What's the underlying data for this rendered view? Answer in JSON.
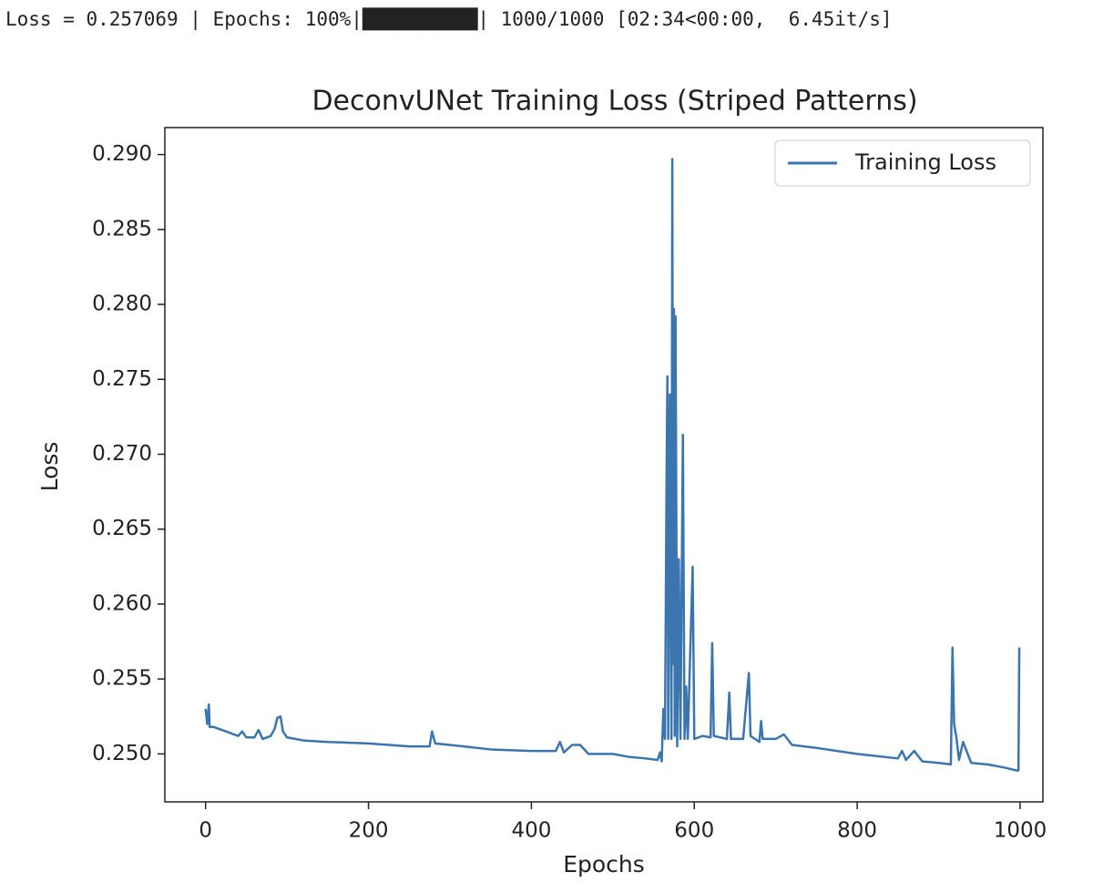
{
  "progress_text": "Loss = 0.257069 | Epochs: 100%|██████████| 1000/1000 [02:34<00:00,  6.45it/s]",
  "chart_data": {
    "type": "line",
    "title": "DeconvUNet Training Loss (Striped Patterns)",
    "x_label": "Epochs",
    "y_label": "Loss",
    "x": [
      0,
      2,
      4,
      5,
      10,
      20,
      30,
      40,
      45,
      50,
      60,
      65,
      70,
      80,
      85,
      88,
      92,
      95,
      100,
      120,
      150,
      200,
      250,
      275,
      278,
      282,
      300,
      350,
      400,
      430,
      435,
      440,
      450,
      460,
      470,
      500,
      520,
      540,
      555,
      558,
      560,
      562,
      564,
      566,
      567,
      568,
      570,
      572,
      573,
      574,
      575,
      576,
      577,
      579,
      581,
      583,
      586,
      588,
      590,
      592,
      598,
      600,
      610,
      620,
      622,
      624,
      640,
      643,
      645,
      660,
      667,
      669,
      680,
      682,
      684,
      700,
      710,
      720,
      750,
      800,
      850,
      855,
      860,
      870,
      880,
      900,
      915,
      917,
      919,
      922,
      925,
      930,
      940,
      960,
      980,
      995,
      998,
      999
    ],
    "series": [
      {
        "name": "Training Loss",
        "color": "#3a75af",
        "values": [
          0.253,
          0.252,
          0.2533,
          0.2518,
          0.2518,
          0.2516,
          0.2514,
          0.2512,
          0.2515,
          0.2511,
          0.2511,
          0.2516,
          0.251,
          0.2512,
          0.2517,
          0.2524,
          0.2525,
          0.2515,
          0.2511,
          0.2509,
          0.2508,
          0.2507,
          0.2505,
          0.2505,
          0.2515,
          0.2507,
          0.2506,
          0.2503,
          0.2502,
          0.2502,
          0.2508,
          0.2501,
          0.2506,
          0.2506,
          0.25,
          0.25,
          0.2498,
          0.2497,
          0.2496,
          0.2501,
          0.2495,
          0.253,
          0.251,
          0.2688,
          0.2752,
          0.251,
          0.274,
          0.251,
          0.2897,
          0.256,
          0.2797,
          0.2512,
          0.2792,
          0.2505,
          0.263,
          0.251,
          0.2713,
          0.251,
          0.2545,
          0.251,
          0.2625,
          0.251,
          0.2512,
          0.2511,
          0.2574,
          0.2512,
          0.251,
          0.2541,
          0.251,
          0.251,
          0.2554,
          0.2512,
          0.2508,
          0.2522,
          0.251,
          0.251,
          0.2513,
          0.2506,
          0.2504,
          0.25,
          0.2497,
          0.2502,
          0.2496,
          0.2502,
          0.2495,
          0.2494,
          0.2493,
          0.2571,
          0.252,
          0.251,
          0.2496,
          0.2508,
          0.2494,
          0.2493,
          0.2491,
          0.2489,
          0.2489,
          0.2571
        ]
      }
    ],
    "xlim": [
      -50,
      1028
    ],
    "ylim": [
      0.2468,
      0.2918
    ],
    "xticks": [
      0,
      200,
      400,
      600,
      800,
      1000
    ],
    "yticks": [
      {
        "value": 0.25,
        "label": "0.250"
      },
      0.255,
      {
        "value": 0.26,
        "label": "0.260"
      },
      0.265,
      {
        "value": 0.27,
        "label": "0.270"
      },
      0.275,
      {
        "value": 0.28,
        "label": "0.280"
      },
      0.285,
      {
        "value": 0.29,
        "label": "0.290"
      }
    ],
    "legend": "upper right",
    "grid": false
  }
}
